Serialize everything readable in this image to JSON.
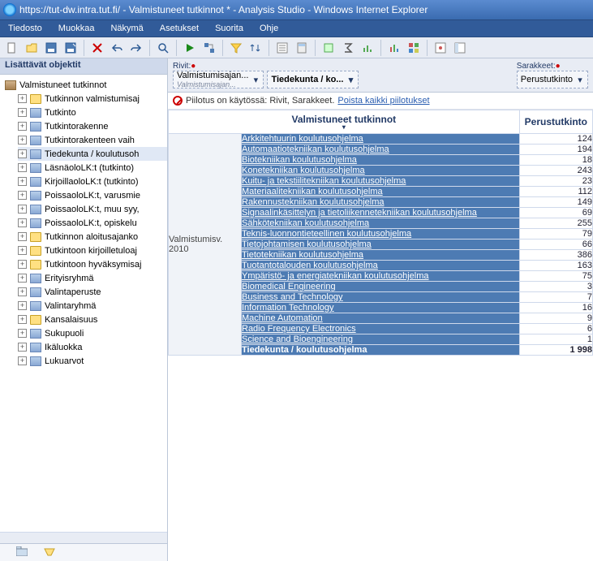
{
  "window": {
    "title": "https://tut-dw.intra.tut.fi/ - Valmistuneet tutkinnot * - Analysis Studio - Windows Internet Explorer"
  },
  "menu": {
    "items": [
      "Tiedosto",
      "Muokkaa",
      "Näkymä",
      "Asetukset",
      "Suorita",
      "Ohje"
    ]
  },
  "sidebar": {
    "title": "Lisättävät objektit",
    "root": "Valmistuneet tutkinnot",
    "items": [
      {
        "label": "Tutkinnon valmistumisaj",
        "icon": "folder"
      },
      {
        "label": "Tutkinto",
        "icon": "dim"
      },
      {
        "label": "Tutkintorakenne",
        "icon": "dim"
      },
      {
        "label": "Tutkintorakenteen vaih",
        "icon": "dim"
      },
      {
        "label": "Tiedekunta / koulutusoh",
        "icon": "dim",
        "selected": true
      },
      {
        "label": "LäsnäoloLK:t (tutkinto)",
        "icon": "dim"
      },
      {
        "label": "KirjoillaoloLK:t (tutkinto)",
        "icon": "dim"
      },
      {
        "label": "PoissaoloLK:t, varusmie",
        "icon": "dim"
      },
      {
        "label": "PoissaoloLK:t, muu syy,",
        "icon": "dim"
      },
      {
        "label": "PoissaoloLK:t, opiskelu",
        "icon": "dim"
      },
      {
        "label": "Tutkinnon aloitusajanko",
        "icon": "folder"
      },
      {
        "label": "Tutkintoon kirjoilletuloaj",
        "icon": "folder"
      },
      {
        "label": "Tutkintoon hyväksymisaj",
        "icon": "folder"
      },
      {
        "label": "Erityisryhmä",
        "icon": "dim"
      },
      {
        "label": "Valintaperuste",
        "icon": "dim"
      },
      {
        "label": "Valintaryhmä",
        "icon": "dim"
      },
      {
        "label": "Kansalaisuus",
        "icon": "folder"
      },
      {
        "label": "Sukupuoli",
        "icon": "dim"
      },
      {
        "label": "Ikäluokka",
        "icon": "dim"
      },
      {
        "label": "Lukuarvot",
        "icon": "dim"
      }
    ]
  },
  "dropzones": {
    "rows_label": "Rivit:",
    "rows_chip1": "Valmistumisajan...",
    "rows_chip1_sub": "Valmistumisajan...",
    "rows_chip2": "Tiedekunta / ko...",
    "cols_label": "Sarakkeet:",
    "cols_chip": "Perustutkinto"
  },
  "filterbar": {
    "text": "Piilotus on käytössä: Rivit, Sarakkeet.",
    "link": "Poista kaikki piilotukset"
  },
  "grid": {
    "header_left": "Valmistuneet tutkinnot",
    "header_right": "Perustutkinto",
    "group_label": "Valmistumisv. 2010",
    "rows": [
      {
        "label": "Arkkitehtuurin koulutusohjelma",
        "value": "124"
      },
      {
        "label": "Automaatiotekniikan koulutusohjelma",
        "value": "194"
      },
      {
        "label": "Biotekniikan koulutusohjelma",
        "value": "18"
      },
      {
        "label": "Konetekniikan koulutusohjelma",
        "value": "243"
      },
      {
        "label": "Kuitu- ja tekstiilitekniikan koulutusohjelma",
        "value": "23"
      },
      {
        "label": "Materiaalitekniikan koulutusohjelma",
        "value": "112"
      },
      {
        "label": "Rakennustekniikan koulutusohjelma",
        "value": "149"
      },
      {
        "label": "Signaalinkäsittelyn ja tietoliikennetekniikan koulutusohjelma",
        "value": "69"
      },
      {
        "label": "Sähkötekniikan koulutusohjelma",
        "value": "255"
      },
      {
        "label": "Teknis-luonnontieteellinen koulutusohjelma",
        "value": "79"
      },
      {
        "label": "Tietojohtamisen koulutusohjelma",
        "value": "66"
      },
      {
        "label": "Tietotekniikan koulutusohjelma",
        "value": "386"
      },
      {
        "label": "Tuotantotalouden koulutusohjelma",
        "value": "163"
      },
      {
        "label": "Ympäristö- ja energiatekniikan koulutusohjelma",
        "value": "75"
      },
      {
        "label": "Biomedical Engineering",
        "value": "3"
      },
      {
        "label": "Business and Technology",
        "value": "7"
      },
      {
        "label": "Information Technology",
        "value": "16"
      },
      {
        "label": "Machine Automation",
        "value": "9"
      },
      {
        "label": "Radio Frequency Electronics",
        "value": "6"
      },
      {
        "label": "Science and Bioengineering",
        "value": "1"
      }
    ],
    "total_label": "Tiedekunta / koulutusohjelma",
    "total_value": "1 998"
  },
  "colors": {
    "titlebar": "#3a6bb0",
    "menubar": "#315b99",
    "header_row": "#4d7bb3",
    "accent": "#223a66"
  }
}
